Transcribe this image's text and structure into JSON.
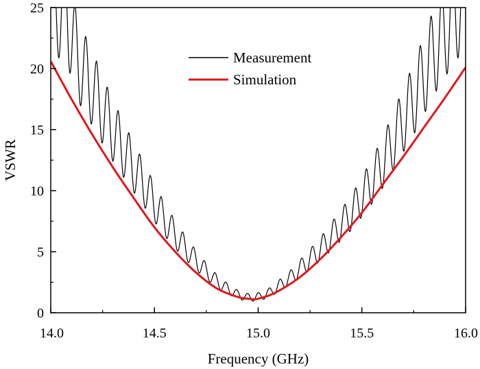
{
  "chart_data": {
    "type": "line",
    "xlabel": "Frequency (GHz)",
    "ylabel": "VSWR",
    "xlim": [
      14.0,
      16.0
    ],
    "ylim": [
      0,
      25
    ],
    "xticks": [
      14.0,
      14.5,
      15.0,
      15.5,
      16.0
    ],
    "xtick_labels": [
      "14.0",
      "14.5",
      "15.0",
      "15.5",
      "16.0"
    ],
    "yticks": [
      0,
      5,
      10,
      15,
      20,
      25
    ],
    "ytick_labels": [
      "0",
      "5",
      "10",
      "15",
      "20",
      "25"
    ],
    "grid": false,
    "legend": "top-center",
    "series": [
      {
        "name": "Measurement",
        "color": "#000000",
        "style": "oscillating",
        "x": [
          14.0,
          14.05,
          14.08,
          14.1,
          14.15,
          14.2,
          14.25,
          14.3,
          14.35,
          14.4,
          14.45,
          14.5,
          14.55,
          14.6,
          14.65,
          14.7,
          14.75,
          14.8,
          14.85,
          14.9,
          14.95,
          15.0,
          15.05,
          15.1,
          15.15,
          15.2,
          15.25,
          15.3,
          15.35,
          15.4,
          15.45,
          15.5,
          15.55,
          15.6,
          15.65,
          15.7,
          15.75,
          15.8,
          15.85,
          15.9,
          15.95,
          16.0
        ],
        "y": [
          25,
          25,
          25,
          22.5,
          20.0,
          18.4,
          16.6,
          14.9,
          13.4,
          11.9,
          10.5,
          9.0,
          7.6,
          6.4,
          5.3,
          4.3,
          3.4,
          2.6,
          2.0,
          1.5,
          1.25,
          1.3,
          1.6,
          2.2,
          2.8,
          3.6,
          4.4,
          5.2,
          6.2,
          7.2,
          8.2,
          9.5,
          10.8,
          12.3,
          14.0,
          15.8,
          17.5,
          19.5,
          21.5,
          23.0,
          25,
          25
        ]
      },
      {
        "name": "Simulation",
        "color": "#e0171d",
        "style": "smooth",
        "x": [
          14.0,
          14.1,
          14.2,
          14.3,
          14.4,
          14.5,
          14.6,
          14.7,
          14.8,
          14.9,
          14.95,
          14.98,
          15.0,
          15.05,
          15.1,
          15.2,
          15.3,
          15.4,
          15.5,
          15.6,
          15.7,
          15.8,
          15.9,
          16.0
        ],
        "y": [
          20.6,
          17.5,
          14.6,
          11.9,
          9.4,
          7.0,
          5.0,
          3.3,
          2.0,
          1.3,
          1.15,
          1.1,
          1.15,
          1.4,
          1.8,
          2.9,
          4.4,
          6.2,
          8.2,
          10.5,
          12.8,
          15.2,
          17.6,
          20.1
        ]
      }
    ]
  }
}
